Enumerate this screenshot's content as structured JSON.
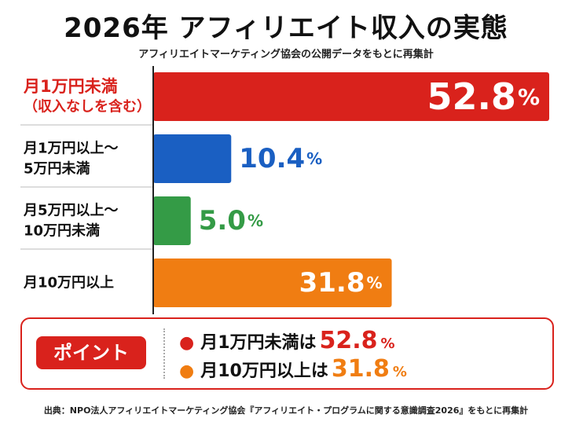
{
  "title": "2026年 アフィリエイト収入の実態",
  "subtitle": "アフィリエイトマーケティング協会の公開データをもとに再集計",
  "chart_data": {
    "type": "bar",
    "orientation": "horizontal",
    "categories": [
      [
        "月1万円未満",
        "（収入なしを含む）"
      ],
      [
        "月1万円以上〜",
        "5万円未満"
      ],
      [
        "月5万円以上〜",
        "10万円未満"
      ],
      [
        "月10万円以上"
      ]
    ],
    "values": [
      52.8,
      10.4,
      5.0,
      31.8
    ],
    "value_labels": [
      "52.8",
      "10.4",
      "5.0",
      "31.8"
    ],
    "unit": "%",
    "colors": [
      "#d9221c",
      "#1a5fc2",
      "#349b46",
      "#f07d12"
    ],
    "xlim": [
      0,
      52.8
    ],
    "grid": false
  },
  "point": {
    "badge": "ポイント",
    "items": [
      {
        "text": "月1万円未満は",
        "value": "52.8",
        "unit": "%",
        "color": "#d9221c"
      },
      {
        "text": "月10万円以上は",
        "value": "31.8",
        "unit": "%",
        "color": "#f07d12"
      }
    ]
  },
  "source": "出典：NPO法人アフィリエイトマーケティング協会『アフィリエイト・プログラムに関する意識調査2026』をもとに再集計"
}
